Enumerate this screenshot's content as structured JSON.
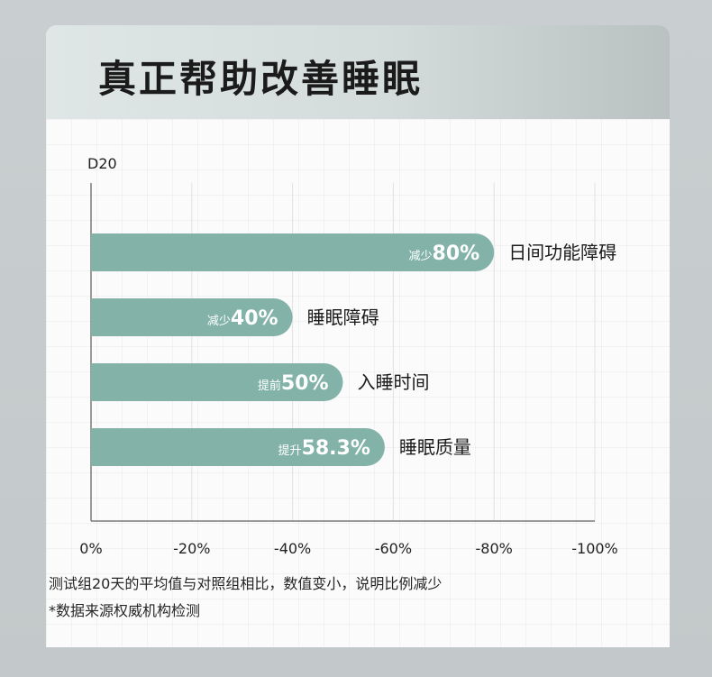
{
  "title": "真正帮助改善睡眠",
  "chart_data": {
    "type": "bar",
    "orientation": "horizontal",
    "series_label": "D20",
    "categories": [
      "日间功能障碍",
      "睡眠障碍",
      "入睡时间",
      "睡眠质量"
    ],
    "values": [
      80,
      40,
      50,
      58.3
    ],
    "bar_labels": [
      {
        "prefix": "减少",
        "value": "80%"
      },
      {
        "prefix": "减少",
        "value": "40%"
      },
      {
        "prefix": "提前",
        "value": "50%"
      },
      {
        "prefix": "提升",
        "value": "58.3%"
      }
    ],
    "xlim": [
      0,
      100
    ],
    "x_ticks": [
      0,
      20,
      40,
      60,
      80,
      100
    ],
    "x_tick_labels": [
      "0%",
      "-20%",
      "-40%",
      "-60%",
      "-80%",
      "-100%"
    ],
    "grid": true,
    "bar_color": "#82b2a8"
  },
  "footnotes": [
    "测试组20天的平均值与对照组相比，数值变小，说明比例减少",
    "*数据来源权威机构检测"
  ]
}
